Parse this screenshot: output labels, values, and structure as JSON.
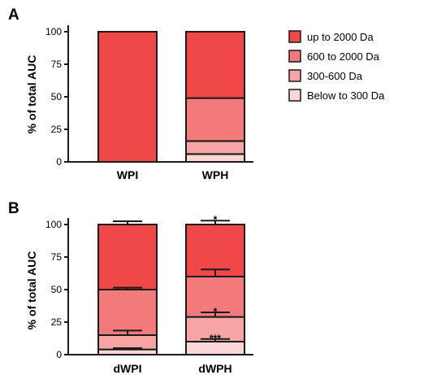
{
  "colors": {
    "up_to_2000": "#f04848",
    "600_to_2000": "#f37a7a",
    "300_600": "#f7a4a4",
    "below_300": "#fbd6d6",
    "stroke": "#1a1a1a"
  },
  "legend": {
    "items": [
      {
        "label": "up to 2000 Da",
        "color_key": "up_to_2000"
      },
      {
        "label": "600 to 2000 Da",
        "color_key": "600_to_2000"
      },
      {
        "label": "300-600 Da",
        "color_key": "300_600"
      },
      {
        "label": "Below to 300 Da",
        "color_key": "below_300"
      }
    ]
  },
  "chart_data": [
    {
      "panel": "A",
      "type": "bar",
      "stacked": true,
      "ylabel": "% of total AUC",
      "ylim": [
        0,
        100
      ],
      "yticks": [
        0,
        25,
        50,
        75,
        100
      ],
      "categories": [
        "WPI",
        "WPH"
      ],
      "series": [
        {
          "name": "Below to 300 Da",
          "color_key": "below_300",
          "values": [
            0,
            6
          ]
        },
        {
          "name": "300-600 Da",
          "color_key": "300_600",
          "values": [
            0,
            10
          ]
        },
        {
          "name": "600 to 2000 Da",
          "color_key": "600_to_2000",
          "values": [
            0,
            33
          ]
        },
        {
          "name": "up to 2000 Da",
          "color_key": "up_to_2000",
          "values": [
            100,
            51
          ]
        }
      ],
      "error_bars": [],
      "annotations": []
    },
    {
      "panel": "B",
      "type": "bar",
      "stacked": true,
      "ylabel": "% of total AUC",
      "ylim": [
        0,
        100
      ],
      "yticks": [
        0,
        25,
        50,
        75,
        100
      ],
      "categories": [
        "dWPI",
        "dWPH"
      ],
      "series": [
        {
          "name": "Below to 300 Da",
          "color_key": "below_300",
          "values": [
            4,
            10
          ]
        },
        {
          "name": "300-600 Da",
          "color_key": "300_600",
          "values": [
            11,
            19
          ]
        },
        {
          "name": "600 to 2000 Da",
          "color_key": "600_to_2000",
          "values": [
            35,
            31
          ]
        },
        {
          "name": "up to 2000 Da",
          "color_key": "up_to_2000",
          "values": [
            50,
            40
          ]
        }
      ],
      "error_bars": [
        {
          "category": 0,
          "top": 4,
          "err": 1
        },
        {
          "category": 0,
          "top": 15,
          "err": 3.5
        },
        {
          "category": 0,
          "top": 50,
          "err": 1.5
        },
        {
          "category": 0,
          "top": 100,
          "err": 2.5
        },
        {
          "category": 1,
          "top": 10,
          "err": 2
        },
        {
          "category": 1,
          "top": 29,
          "err": 3.5
        },
        {
          "category": 1,
          "top": 60,
          "err": 5.5
        },
        {
          "category": 1,
          "top": 100,
          "err": 3
        }
      ],
      "annotations": [
        {
          "category": 1,
          "y": 103,
          "text": "*"
        },
        {
          "category": 1,
          "y": 32.5,
          "text": "*"
        },
        {
          "category": 1,
          "y": 12,
          "text": "***"
        }
      ]
    }
  ]
}
